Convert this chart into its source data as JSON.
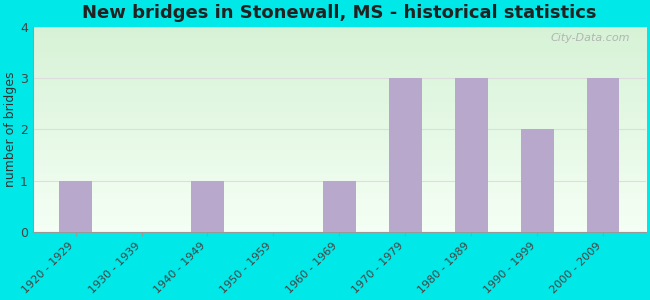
{
  "title": "New bridges in Stonewall, MS - historical statistics",
  "categories": [
    "1920 - 1929",
    "1930 - 1939",
    "1940 - 1949",
    "1950 - 1959",
    "1960 - 1969",
    "1970 - 1979",
    "1980 - 1989",
    "1990 - 1999",
    "2000 - 2009"
  ],
  "values": [
    1,
    0,
    1,
    0,
    1,
    3,
    3,
    2,
    3
  ],
  "bar_color": "#b8a8cc",
  "ylabel": "number of bridges",
  "ylim": [
    0,
    4
  ],
  "yticks": [
    0,
    1,
    2,
    3,
    4
  ],
  "background_outer": "#00e8e8",
  "grid_color": "#dddddd",
  "title_fontsize": 13,
  "axis_label_fontsize": 9,
  "tick_fontsize": 8,
  "watermark": "City-Data.com"
}
